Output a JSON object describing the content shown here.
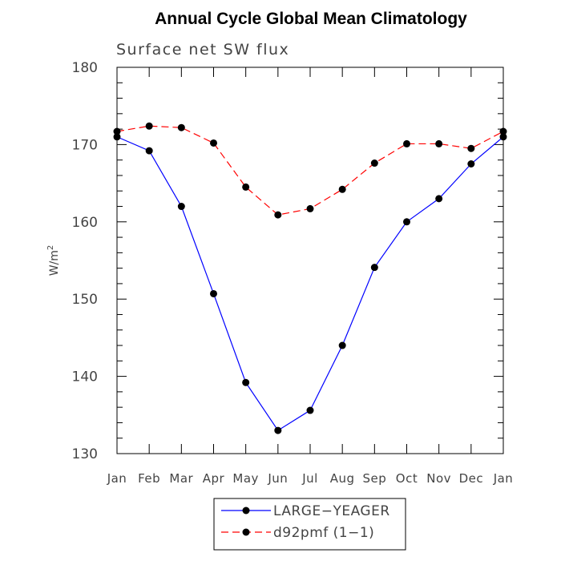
{
  "chart_data": {
    "type": "line",
    "title": "Annual Cycle Global Mean Climatology",
    "subtitle": "Surface net SW flux",
    "ylabel": "W/m",
    "ylabel_sup": "2",
    "xlabel": "",
    "categories": [
      "Jan",
      "Feb",
      "Mar",
      "Apr",
      "May",
      "Jun",
      "Jul",
      "Aug",
      "Sep",
      "Oct",
      "Nov",
      "Dec",
      "Jan"
    ],
    "ylim": [
      130,
      180
    ],
    "yticks": [
      130,
      140,
      150,
      160,
      170,
      180
    ],
    "yticks_minor_step": 2,
    "series": [
      {
        "name": "LARGE−YEAGER",
        "color": "#0000ff",
        "dash": "solid",
        "values": [
          171.0,
          169.2,
          162.0,
          150.7,
          139.2,
          133.0,
          135.6,
          144.0,
          154.1,
          160.0,
          163.0,
          167.5,
          171.0
        ]
      },
      {
        "name": "d92pmf (1−1)",
        "color": "#ff0000",
        "dash": "dashed",
        "values": [
          171.7,
          172.4,
          172.2,
          170.2,
          164.5,
          160.9,
          161.7,
          164.2,
          167.6,
          170.1,
          170.1,
          169.5,
          171.7
        ]
      }
    ],
    "legend_position": "bottom-center",
    "grid": false
  }
}
